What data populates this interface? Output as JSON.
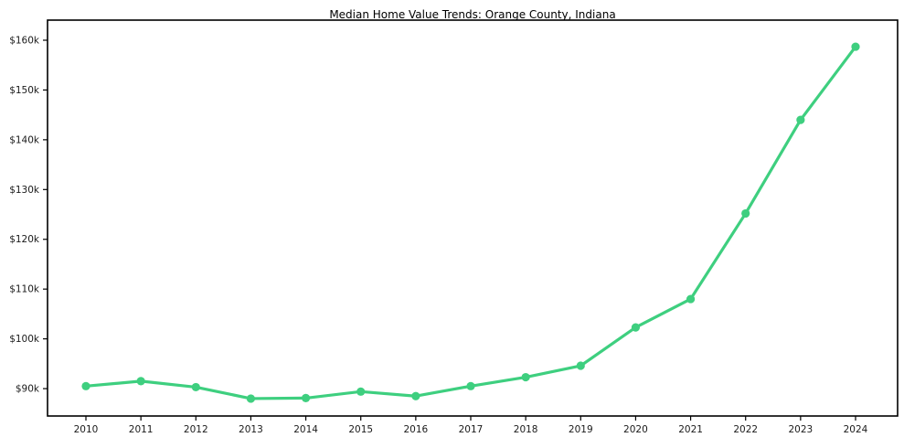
{
  "chart_data": {
    "type": "line",
    "title": "Median Home Value Trends: Orange County, Indiana",
    "xlabel": "",
    "ylabel": "",
    "x": [
      2010,
      2011,
      2012,
      2013,
      2014,
      2015,
      2016,
      2017,
      2018,
      2019,
      2020,
      2021,
      2022,
      2023,
      2024
    ],
    "series": [
      {
        "name": "Median Home Value",
        "values": [
          90500,
          91500,
          90300,
          88000,
          88100,
          89400,
          88500,
          90500,
          92300,
          94600,
          102300,
          108000,
          125200,
          144000,
          158700
        ]
      }
    ],
    "ylim": [
      84500,
      164040
    ],
    "ytick_values": [
      90000,
      100000,
      110000,
      120000,
      130000,
      140000,
      150000,
      160000
    ],
    "ytick_labels": [
      "$90k",
      "$100k",
      "$110k",
      "$120k",
      "$130k",
      "$140k",
      "$150k",
      "$160k"
    ],
    "xtick_labels": [
      "2010",
      "2011",
      "2012",
      "2013",
      "2014",
      "2015",
      "2016",
      "2017",
      "2018",
      "2019",
      "2020",
      "2021",
      "2022",
      "2023",
      "2024"
    ],
    "grid": false,
    "legend_position": "none",
    "line_color": "#3ecf7f",
    "marker_color": "#3ecf7f",
    "border_color": "#000000",
    "tick_label_color": "#1a1a1a"
  }
}
